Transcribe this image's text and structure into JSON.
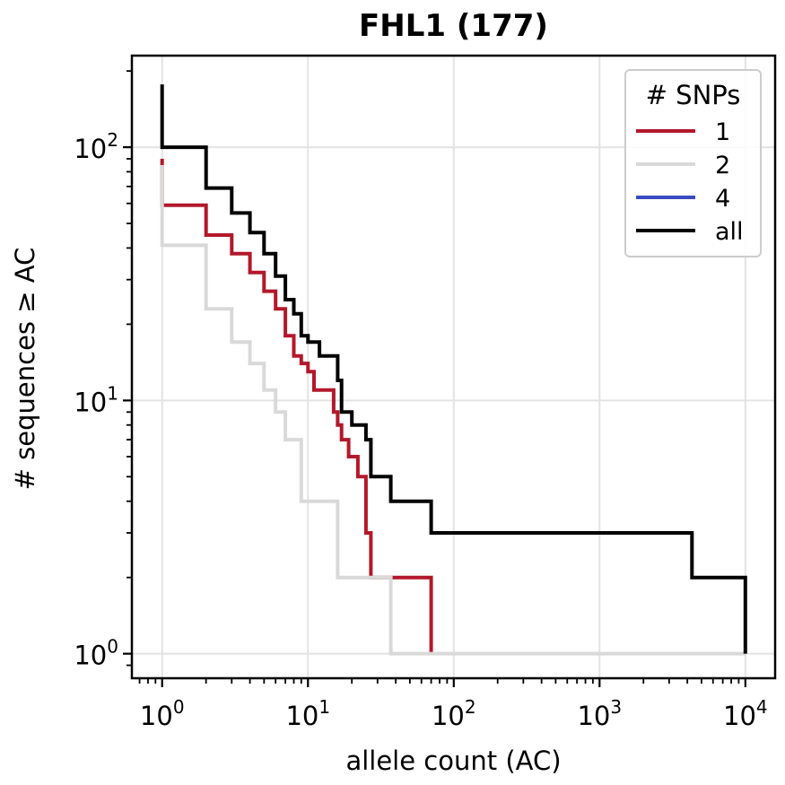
{
  "chart_data": {
    "type": "line",
    "step": "post",
    "title": "FHL1 (177)",
    "xlabel": "allele count (AC)",
    "ylabel": "# sequences ≥ AC",
    "xscale": "log",
    "yscale": "log",
    "xlim": [
      0.62,
      16000
    ],
    "ylim": [
      0.8,
      230
    ],
    "grid": true,
    "x_ticks": [
      {
        "value": 1,
        "base": "10",
        "exp": "0"
      },
      {
        "value": 10,
        "base": "10",
        "exp": "1"
      },
      {
        "value": 100,
        "base": "10",
        "exp": "2"
      },
      {
        "value": 1000,
        "base": "10",
        "exp": "3"
      },
      {
        "value": 10000,
        "base": "10",
        "exp": "4"
      }
    ],
    "y_ticks": [
      {
        "value": 1,
        "base": "10",
        "exp": "0"
      },
      {
        "value": 10,
        "base": "10",
        "exp": "1"
      },
      {
        "value": 100,
        "base": "10",
        "exp": "2"
      }
    ],
    "legend": {
      "title": "# SNPs",
      "position": "upper right"
    },
    "series": [
      {
        "name": "1",
        "color": "#b2182b",
        "x": [
          1,
          1,
          2,
          3,
          4,
          5,
          6,
          7,
          8,
          9,
          10,
          11,
          15,
          16,
          17,
          19,
          22,
          25,
          27,
          70
        ],
        "y": [
          90,
          59,
          45,
          38,
          32,
          27,
          23,
          18,
          15,
          14,
          13,
          11,
          9,
          8,
          7,
          6,
          5,
          3,
          2,
          1
        ]
      },
      {
        "name": "2",
        "color": "#d9d9d9",
        "x": [
          1,
          1,
          2,
          3,
          4,
          5,
          6,
          7,
          9,
          16,
          37,
          10000
        ],
        "y": [
          85,
          41,
          23,
          17,
          14,
          11,
          9,
          7,
          4,
          2,
          1,
          1
        ]
      },
      {
        "name": "4",
        "color": "#3b4cc0",
        "x": [],
        "y": []
      },
      {
        "name": "all",
        "color": "#000000",
        "x": [
          1,
          1,
          2,
          3,
          4,
          5,
          6,
          7,
          8,
          9,
          10,
          12,
          16,
          17,
          20,
          25,
          27,
          37,
          70,
          4300,
          10000
        ],
        "y": [
          177,
          100,
          69,
          55,
          46,
          38,
          31,
          25,
          22,
          18,
          17,
          15,
          12,
          9,
          8,
          7,
          5,
          4,
          3,
          2,
          1
        ]
      }
    ]
  }
}
